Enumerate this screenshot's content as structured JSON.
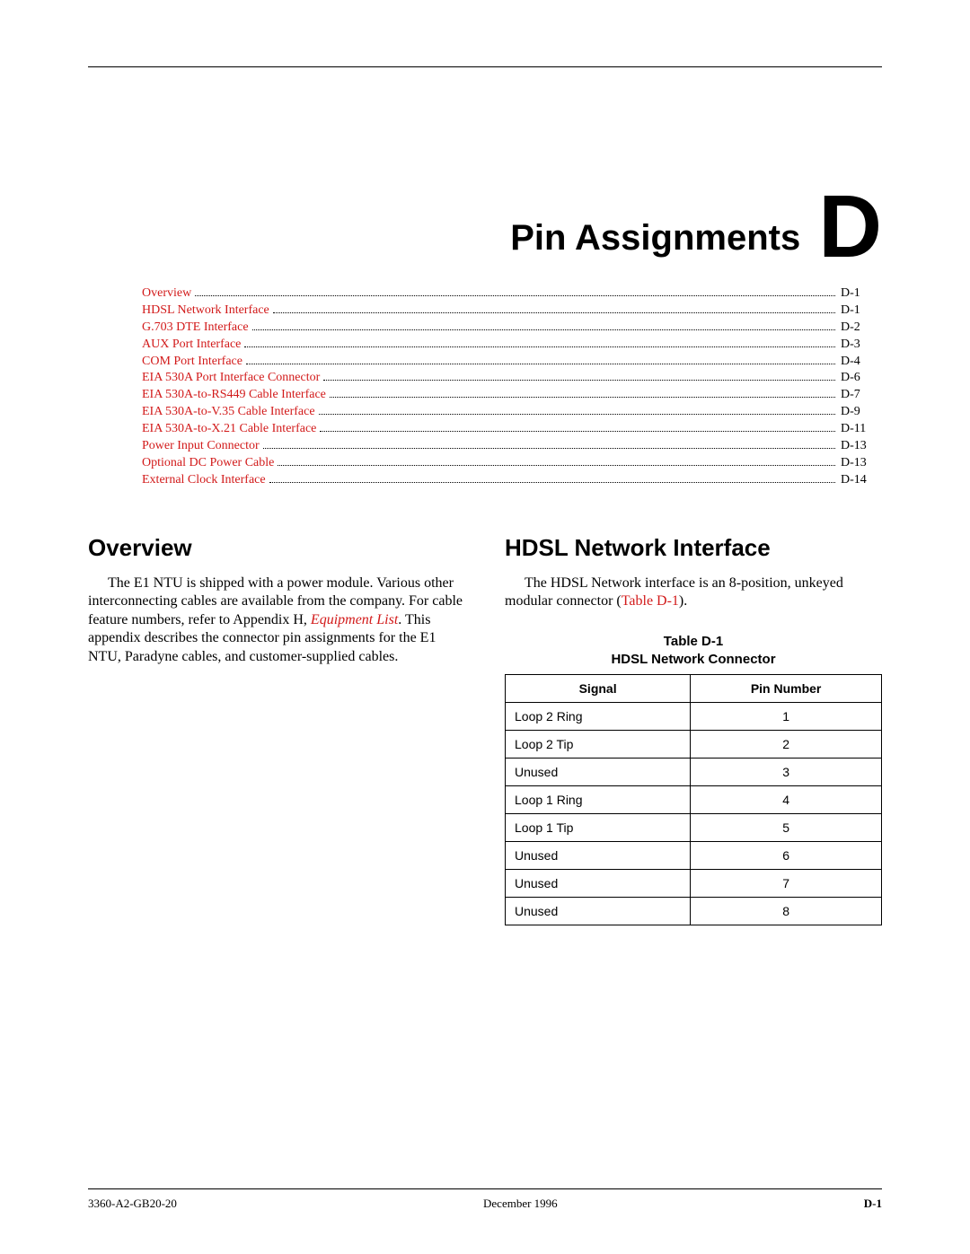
{
  "chapter": {
    "title": "Pin Assignments",
    "letter": "D"
  },
  "link_color": "#d21a1a",
  "toc": [
    {
      "label": "Overview",
      "page": "D-1"
    },
    {
      "label": "HDSL Network Interface",
      "page": "D-1"
    },
    {
      "label": "G.703 DTE Interface",
      "page": "D-2"
    },
    {
      "label": "AUX Port Interface",
      "page": "D-3"
    },
    {
      "label": "COM Port Interface",
      "page": "D-4"
    },
    {
      "label": "EIA 530A Port Interface Connector",
      "page": "D-6"
    },
    {
      "label": "EIA 530A-to-RS449 Cable Interface",
      "page": "D-7"
    },
    {
      "label": "EIA 530A-to-V.35 Cable Interface",
      "page": "D-9"
    },
    {
      "label": "EIA 530A-to-X.21 Cable Interface",
      "page": "D-11"
    },
    {
      "label": "Power Input Connector",
      "page": "D-13"
    },
    {
      "label": "Optional DC Power Cable",
      "page": "D-13"
    },
    {
      "label": "External Clock Interface",
      "page": "D-14"
    }
  ],
  "sections": {
    "overview": {
      "heading": "Overview",
      "para_pre": "The E1 NTU is shipped with a power module. Various other interconnecting cables are available from the company. For cable feature numbers, refer to Appendix H, ",
      "para_link": "Equipment List",
      "para_post": ". This appendix describes the connector pin assignments for the E1 NTU, Paradyne cables, and customer-supplied cables."
    },
    "hdsl": {
      "heading": "HDSL Network Interface",
      "para_pre": "The HDSL Network interface is an 8-position, unkeyed modular connector (",
      "para_link": "Table D-1",
      "para_post": ")."
    }
  },
  "table": {
    "caption_line1": "Table D-1",
    "caption_line2": "HDSL Network Connector",
    "columns": [
      "Signal",
      "Pin Number"
    ],
    "rows": [
      [
        "Loop 2 Ring",
        "1"
      ],
      [
        "Loop 2 Tip",
        "2"
      ],
      [
        "Unused",
        "3"
      ],
      [
        "Loop 1 Ring",
        "4"
      ],
      [
        "Loop 1 Tip",
        "5"
      ],
      [
        "Unused",
        "6"
      ],
      [
        "Unused",
        "7"
      ],
      [
        "Unused",
        "8"
      ]
    ]
  },
  "footer": {
    "left": "3360-A2-GB20-20",
    "center": "December 1996",
    "right": "D-1"
  }
}
